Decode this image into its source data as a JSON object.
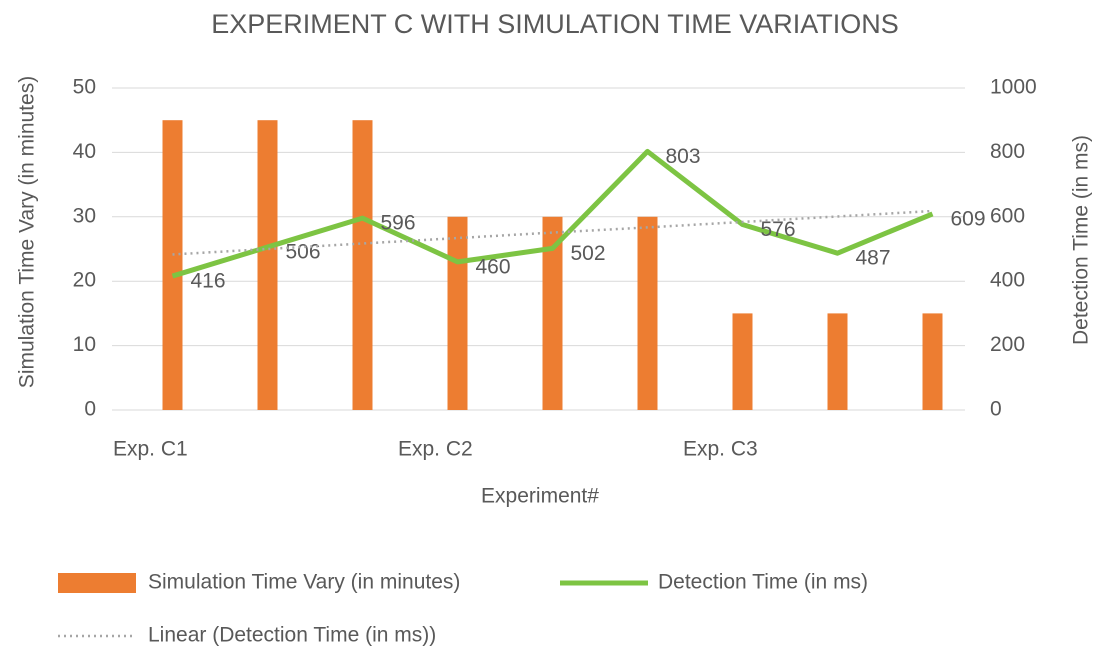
{
  "chart_data": {
    "type": "bar-line",
    "title": "EXPERIMENT C WITH SIMULATION TIME VARIATIONS",
    "x_label": "Experiment#",
    "y_label": "Simulation Time Vary (in minutes)",
    "y2_label": "Detection Time (in ms)",
    "categories": [
      "Exp. C1",
      null,
      null,
      "Exp. C2",
      null,
      null,
      "Exp. C3",
      null,
      null
    ],
    "series": [
      {
        "name": "Simulation Time Vary (in minutes)",
        "kind": "bar",
        "color": "#ed7d31",
        "values": [
          45,
          45,
          45,
          30,
          30,
          30,
          15,
          15,
          15
        ]
      },
      {
        "name": "Detection Time (in ms)",
        "kind": "line",
        "color": "#7dc443",
        "axis": "y2",
        "data_labels": true,
        "values": [
          416,
          506,
          596,
          460,
          502,
          803,
          576,
          487,
          609
        ]
      },
      {
        "name": "Linear (Detection Time (in ms))",
        "kind": "trend",
        "color": "#a6a6a6",
        "axis": "y2",
        "values": [
          483,
          500,
          517,
          534,
          551,
          567,
          584,
          601,
          618
        ]
      }
    ],
    "ylim": [
      0,
      50
    ],
    "yticks": [
      0,
      10,
      20,
      30,
      40,
      50
    ],
    "y2lim": [
      0,
      1000
    ],
    "y2ticks": [
      0,
      200,
      400,
      600,
      800,
      1000
    ],
    "grid": true,
    "legend": "bottom"
  }
}
